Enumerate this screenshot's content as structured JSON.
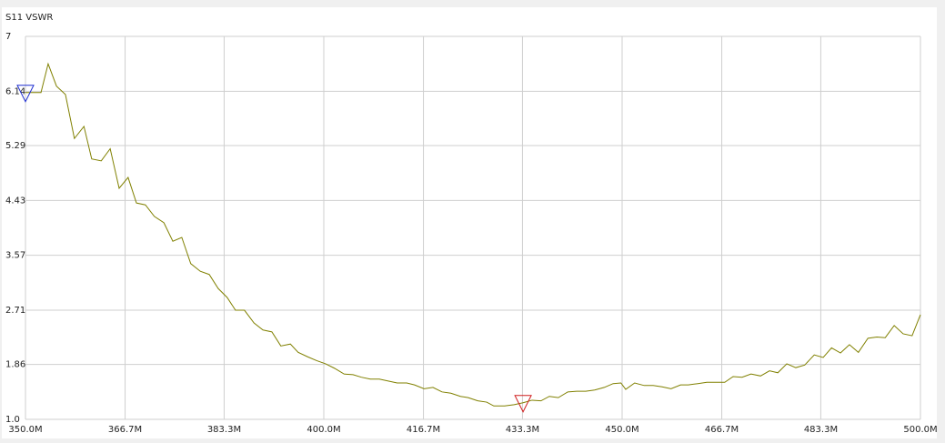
{
  "chart_data": {
    "type": "line",
    "title": "S11 VSWR",
    "x": [
      350.0,
      351.1,
      352.6,
      353.8,
      355.2,
      356.7,
      358.2,
      359.8,
      361.1,
      362.7,
      364.2,
      365.7,
      367.2,
      368.6,
      370.1,
      371.6,
      373.2,
      374.7,
      376.2,
      377.7,
      379.3,
      380.8,
      382.3,
      383.8,
      385.2,
      386.7,
      388.3,
      389.8,
      391.3,
      392.8,
      394.4,
      395.7,
      397.3,
      398.8,
      400.3,
      401.8,
      403.4,
      404.9,
      406.3,
      407.8,
      409.3,
      410.8,
      412.3,
      413.9,
      415.2,
      416.8,
      418.3,
      419.8,
      421.3,
      422.9,
      424.2,
      425.8,
      427.3,
      428.5,
      430.3,
      431.9,
      433.4,
      434.9,
      436.4,
      437.8,
      439.3,
      440.9,
      442.4,
      443.9,
      445.4,
      447.0,
      448.5,
      449.8,
      450.6,
      452.1,
      453.7,
      455.2,
      456.7,
      458.2,
      459.8,
      461.1,
      462.7,
      464.2,
      465.7,
      467.2,
      468.6,
      470.1,
      471.6,
      473.2,
      474.7,
      476.1,
      477.6,
      479.1,
      480.6,
      482.2,
      483.7,
      485.1,
      486.6,
      488.1,
      489.6,
      491.2,
      492.7,
      494.1,
      495.6,
      497.1,
      498.6,
      500.0
    ],
    "values": [
      6.12,
      6.12,
      6.12,
      6.57,
      6.22,
      6.09,
      5.4,
      5.59,
      5.08,
      5.05,
      5.24,
      4.62,
      4.79,
      4.39,
      4.36,
      4.18,
      4.08,
      3.79,
      3.85,
      3.44,
      3.32,
      3.27,
      3.05,
      2.91,
      2.71,
      2.71,
      2.51,
      2.4,
      2.37,
      2.15,
      2.18,
      2.05,
      1.98,
      1.92,
      1.87,
      1.8,
      1.71,
      1.7,
      1.66,
      1.63,
      1.63,
      1.6,
      1.57,
      1.57,
      1.54,
      1.48,
      1.5,
      1.43,
      1.41,
      1.36,
      1.34,
      1.29,
      1.27,
      1.21,
      1.21,
      1.23,
      1.26,
      1.3,
      1.29,
      1.36,
      1.34,
      1.43,
      1.44,
      1.44,
      1.46,
      1.5,
      1.56,
      1.57,
      1.47,
      1.57,
      1.53,
      1.53,
      1.51,
      1.48,
      1.54,
      1.54,
      1.56,
      1.58,
      1.58,
      1.58,
      1.67,
      1.66,
      1.71,
      1.68,
      1.76,
      1.73,
      1.87,
      1.81,
      1.85,
      2.01,
      1.97,
      2.12,
      2.04,
      2.17,
      2.05,
      2.27,
      2.29,
      2.28,
      2.47,
      2.34,
      2.31,
      2.64
    ],
    "color": "#808000",
    "xlim": [
      350,
      500
    ],
    "xticks": [
      {
        "value": 350,
        "label": "350.0M"
      },
      {
        "value": 366.7,
        "label": "366.7M"
      },
      {
        "value": 383.3,
        "label": "383.3M"
      },
      {
        "value": 400,
        "label": "400.0M"
      },
      {
        "value": 416.7,
        "label": "416.7M"
      },
      {
        "value": 433.3,
        "label": "433.3M"
      },
      {
        "value": 450,
        "label": "450.0M"
      },
      {
        "value": 466.7,
        "label": "466.7M"
      },
      {
        "value": 483.3,
        "label": "483.3M"
      },
      {
        "value": 500,
        "label": "500.0M"
      }
    ],
    "ylim": [
      1,
      7
    ],
    "yticks": [
      {
        "value": 1,
        "label": "1.0"
      },
      1.86,
      2.71,
      3.57,
      4.43,
      5.29,
      6.14,
      7
    ],
    "grid": true,
    "markers": [
      {
        "x": 350.0,
        "color": "#1f2fd0"
      },
      {
        "x": 433.4,
        "color": "#d01f1f"
      }
    ]
  }
}
